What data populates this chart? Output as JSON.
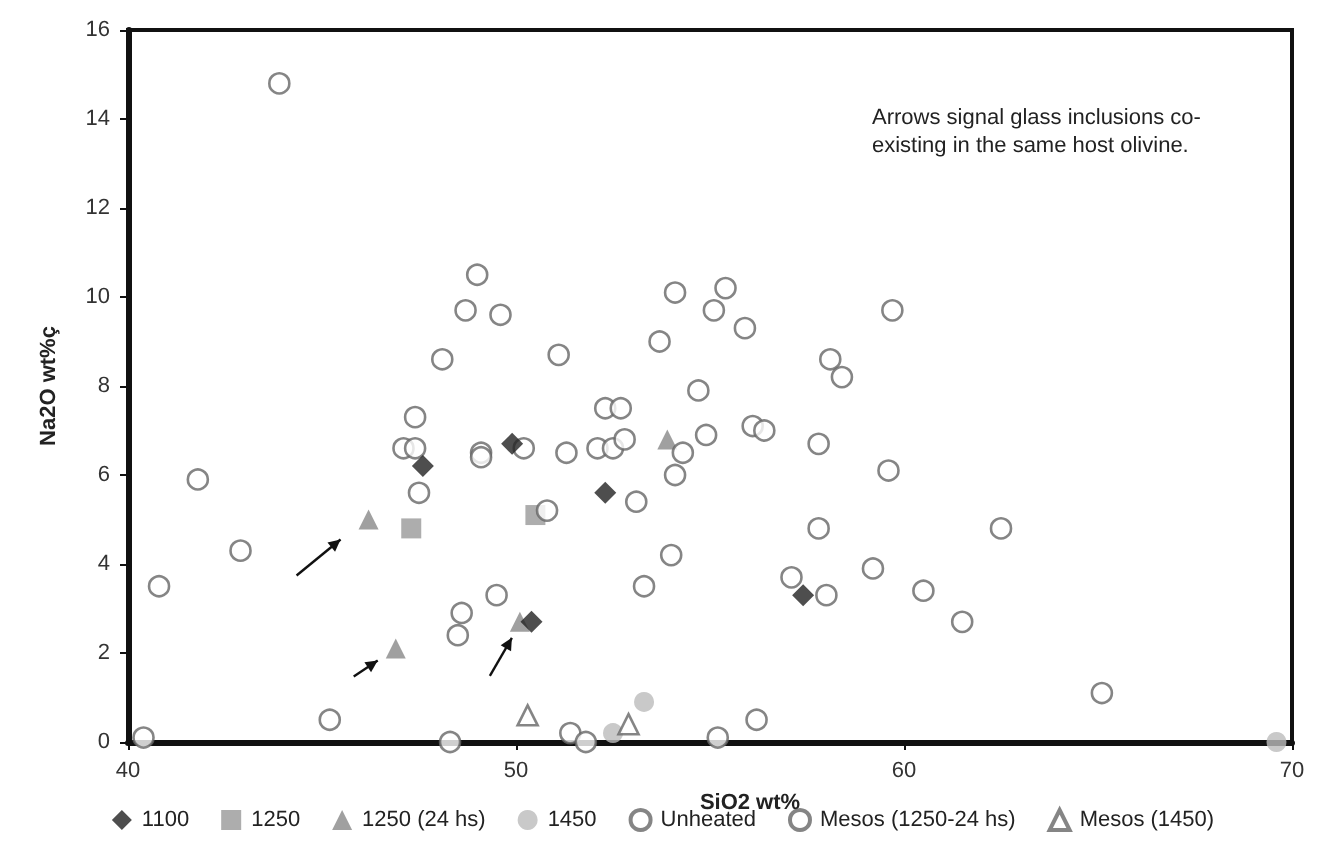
{
  "chart_data": {
    "type": "scatter",
    "xlabel": "SiO2 wt%",
    "ylabel": "Na2O wt%ç",
    "annotations": [
      "Arrows signal glass inclusions co-existing in the same host olivine."
    ],
    "xlim": [
      40,
      70
    ],
    "xticks": [
      40,
      50,
      60,
      70
    ],
    "ylim": [
      0,
      16
    ],
    "yticks": [
      0,
      2,
      4,
      6,
      8,
      10,
      12,
      14,
      16
    ],
    "grid": false,
    "legend": "bottom",
    "series": [
      {
        "name": "1100",
        "color": "#222222",
        "marker": "diamond",
        "x": [
          47.6,
          49.9,
          52.3,
          50.4,
          57.4
        ],
        "values": [
          6.2,
          6.7,
          5.6,
          2.7,
          3.3
        ]
      },
      {
        "name": "1250",
        "color": "#999999",
        "marker": "square",
        "x": [
          47.3,
          50.5
        ],
        "values": [
          4.8,
          5.1
        ]
      },
      {
        "name": "1250 (24 hs)",
        "color": "#888888",
        "marker": "triangle",
        "x": [
          46.2,
          46.9,
          50.1,
          53.9
        ],
        "values": [
          5.0,
          2.1,
          2.7,
          6.8
        ]
      },
      {
        "name": "1450",
        "color": "#bbbbbb",
        "marker": "circle",
        "x": [
          53.3,
          52.5,
          69.6
        ],
        "values": [
          0.9,
          0.2,
          0.0
        ]
      },
      {
        "name": "Unheated",
        "color": "#666666",
        "marker": "circle",
        "x": [
          43.9,
          49.0,
          48.7,
          49.6,
          48.1,
          51.1,
          53.7,
          54.1,
          52.3,
          52.7,
          47.4,
          55.4,
          55.1,
          55.9,
          59.7,
          58.1,
          58.4,
          54.7,
          47.1,
          47.4,
          49.1,
          49.1,
          50.2,
          51.3,
          52.1,
          52.5,
          52.8,
          47.5,
          50.8,
          53.1,
          54.1,
          41.8,
          42.9,
          40.8,
          49.5,
          48.6,
          48.5,
          53.3,
          54.0,
          45.2,
          56.1,
          56.4,
          54.9,
          54.3,
          57.8,
          59.6,
          57.8,
          62.5,
          57.1,
          58.0,
          59.2,
          60.5,
          61.5,
          65.1,
          56.2
        ],
        "values": [
          14.8,
          10.5,
          9.7,
          9.6,
          8.6,
          8.7,
          9.0,
          10.1,
          7.5,
          7.5,
          7.3,
          10.2,
          9.7,
          9.3,
          9.7,
          8.6,
          8.2,
          7.9,
          6.6,
          6.6,
          6.5,
          6.4,
          6.6,
          6.5,
          6.6,
          6.6,
          6.8,
          5.6,
          5.2,
          5.4,
          6.0,
          5.9,
          4.3,
          3.5,
          3.3,
          2.9,
          2.4,
          3.5,
          4.2,
          0.5,
          7.1,
          7.0,
          6.9,
          6.5,
          6.7,
          6.1,
          4.8,
          4.8,
          3.7,
          3.3,
          3.9,
          3.4,
          2.7,
          1.1,
          0.5
        ]
      },
      {
        "name": "Mesos (1250-24 hs)",
        "color": "#666666",
        "marker": "circle",
        "x": [
          40.4,
          48.3,
          51.4,
          51.8,
          55.2
        ],
        "values": [
          0.1,
          0.0,
          0.2,
          0.0,
          0.1
        ]
      },
      {
        "name": "Mesos (1450)",
        "color": "#666666",
        "marker": "triangle",
        "x": [
          50.3,
          52.9
        ],
        "values": [
          0.6,
          0.4
        ]
      }
    ]
  }
}
